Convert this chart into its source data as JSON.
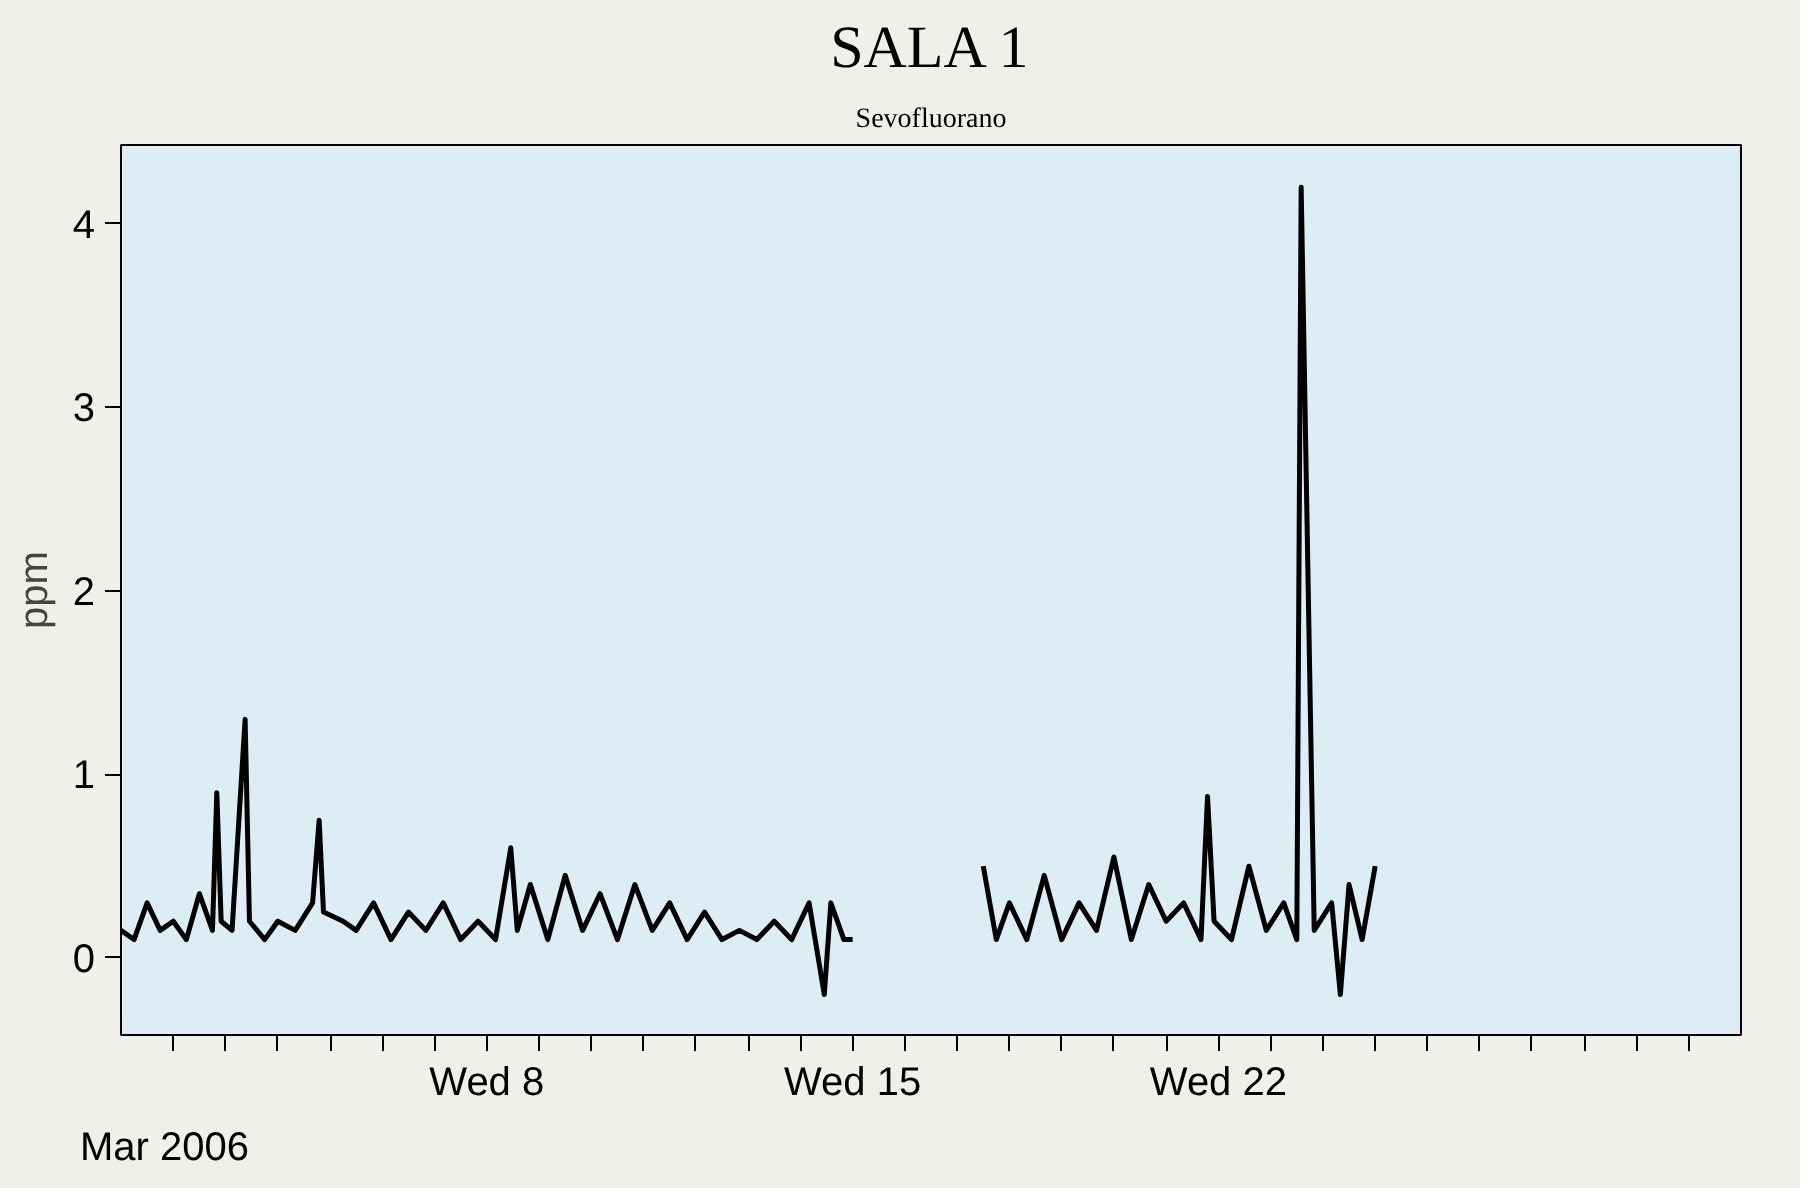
{
  "chart_data": {
    "type": "line",
    "title": "SALA 1",
    "subtitle": "Sevofluorano",
    "ylabel": "ppm",
    "annotations": [
      "Mar 2006"
    ],
    "x": [
      "2006-03-01T00:00",
      "2006-03-01T06:00",
      "2006-03-01T12:00",
      "2006-03-01T18:00",
      "2006-03-02T00:00",
      "2006-03-02T06:00",
      "2006-03-02T12:00",
      "2006-03-02T18:00",
      "2006-03-02T20:00",
      "2006-03-02T22:00",
      "2006-03-03T03:00",
      "2006-03-03T09:00",
      "2006-03-03T11:00",
      "2006-03-03T18:00",
      "2006-03-04T00:00",
      "2006-03-04T08:00",
      "2006-03-04T16:00",
      "2006-03-04T19:00",
      "2006-03-04T21:00",
      "2006-03-05T06:00",
      "2006-03-05T12:00",
      "2006-03-05T20:00",
      "2006-03-06T04:00",
      "2006-03-06T12:00",
      "2006-03-06T20:00",
      "2006-03-07T04:00",
      "2006-03-07T12:00",
      "2006-03-07T20:00",
      "2006-03-08T04:00",
      "2006-03-08T11:00",
      "2006-03-08T14:00",
      "2006-03-08T20:00",
      "2006-03-09T04:00",
      "2006-03-09T12:00",
      "2006-03-09T20:00",
      "2006-03-10T04:00",
      "2006-03-10T12:00",
      "2006-03-10T20:00",
      "2006-03-11T04:00",
      "2006-03-11T12:00",
      "2006-03-11T20:00",
      "2006-03-12T04:00",
      "2006-03-12T12:00",
      "2006-03-12T20:00",
      "2006-03-13T04:00",
      "2006-03-13T12:00",
      "2006-03-13T20:00",
      "2006-03-14T04:00",
      "2006-03-14T11:00",
      "2006-03-14T14:00",
      "2006-03-14T20:00",
      "2006-03-15T00:00",
      "2006-03-16T12:00",
      "2006-03-17T12:00",
      "2006-03-17T18:00",
      "2006-03-18T00:00",
      "2006-03-18T08:00",
      "2006-03-18T16:00",
      "2006-03-19T00:00",
      "2006-03-19T08:00",
      "2006-03-19T16:00",
      "2006-03-20T00:00",
      "2006-03-20T08:00",
      "2006-03-20T16:00",
      "2006-03-21T00:00",
      "2006-03-21T08:00",
      "2006-03-21T16:00",
      "2006-03-21T19:00",
      "2006-03-21T22:00",
      "2006-03-22T06:00",
      "2006-03-22T14:00",
      "2006-03-22T22:00",
      "2006-03-23T06:00",
      "2006-03-23T12:00",
      "2006-03-23T14:00",
      "2006-03-23T20:00",
      "2006-03-24T04:00",
      "2006-03-24T08:00",
      "2006-03-24T12:00",
      "2006-03-24T18:00",
      "2006-03-25T00:00"
    ],
    "series": [
      {
        "color": "#000000",
        "values": [
          0.15,
          0.1,
          0.3,
          0.15,
          0.2,
          0.1,
          0.35,
          0.15,
          0.9,
          0.2,
          0.15,
          1.3,
          0.2,
          0.1,
          0.2,
          0.15,
          0.3,
          0.75,
          0.25,
          0.2,
          0.15,
          0.3,
          0.1,
          0.25,
          0.15,
          0.3,
          0.1,
          0.2,
          0.1,
          0.6,
          0.15,
          0.4,
          0.1,
          0.45,
          0.15,
          0.35,
          0.1,
          0.4,
          0.15,
          0.3,
          0.1,
          0.25,
          0.1,
          0.15,
          0.1,
          0.2,
          0.1,
          0.3,
          -0.2,
          0.3,
          0.1,
          0.1,
          null,
          0.5,
          0.1,
          0.3,
          0.1,
          0.45,
          0.1,
          0.3,
          0.15,
          0.55,
          0.1,
          0.4,
          0.2,
          0.3,
          0.1,
          0.88,
          0.2,
          0.1,
          0.5,
          0.15,
          0.3,
          0.1,
          4.2,
          0.15,
          0.3,
          -0.2,
          0.4,
          0.1,
          0.5
        ]
      }
    ],
    "xlim": [
      "2006-03-01T00:00",
      "2006-04-01T00:00"
    ],
    "xticks": [
      {
        "value": "2006-03-02",
        "label": null
      },
      {
        "value": "2006-03-03",
        "label": null
      },
      {
        "value": "2006-03-04",
        "label": null
      },
      {
        "value": "2006-03-05",
        "label": null
      },
      {
        "value": "2006-03-06",
        "label": null
      },
      {
        "value": "2006-03-07",
        "label": null
      },
      {
        "value": "2006-03-08",
        "label": "Wed 8"
      },
      {
        "value": "2006-03-09",
        "label": null
      },
      {
        "value": "2006-03-10",
        "label": null
      },
      {
        "value": "2006-03-11",
        "label": null
      },
      {
        "value": "2006-03-12",
        "label": null
      },
      {
        "value": "2006-03-13",
        "label": null
      },
      {
        "value": "2006-03-14",
        "label": null
      },
      {
        "value": "2006-03-15",
        "label": "Wed 15"
      },
      {
        "value": "2006-03-16",
        "label": null
      },
      {
        "value": "2006-03-17",
        "label": null
      },
      {
        "value": "2006-03-18",
        "label": null
      },
      {
        "value": "2006-03-19",
        "label": null
      },
      {
        "value": "2006-03-20",
        "label": null
      },
      {
        "value": "2006-03-21",
        "label": null
      },
      {
        "value": "2006-03-22",
        "label": "Wed 22"
      },
      {
        "value": "2006-03-23",
        "label": null
      },
      {
        "value": "2006-03-24",
        "label": null
      },
      {
        "value": "2006-03-25",
        "label": null
      },
      {
        "value": "2006-03-26",
        "label": null
      },
      {
        "value": "2006-03-27",
        "label": null
      },
      {
        "value": "2006-03-28",
        "label": null
      },
      {
        "value": "2006-03-29",
        "label": null
      },
      {
        "value": "2006-03-30",
        "label": null
      },
      {
        "value": "2006-03-31",
        "label": null
      }
    ],
    "ylim": [
      -0.42,
      4.43
    ],
    "yticks": [
      0,
      1,
      2,
      3,
      4
    ],
    "grid": false,
    "marker": "none",
    "line_style": "solid"
  }
}
